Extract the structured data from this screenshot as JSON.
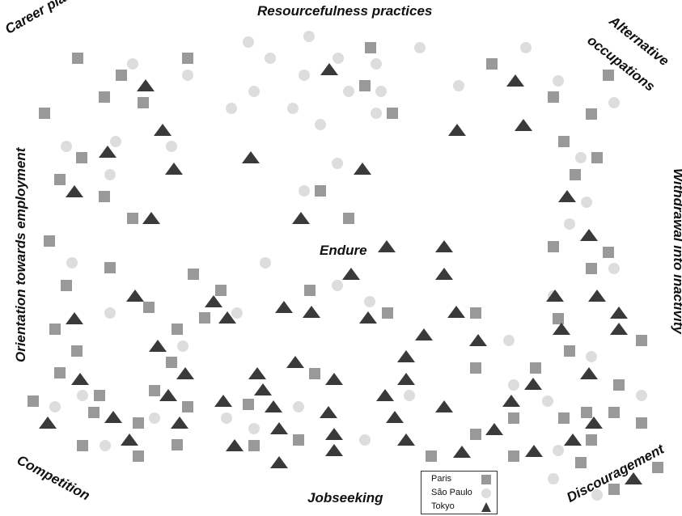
{
  "labels": {
    "top": "Resourcefulness practices",
    "top_left": "Career plan",
    "top_right_line1": "Alternative",
    "top_right_line2": "occupations",
    "left": "Orientation towards employment",
    "right": "Withdrawal into inactivity",
    "center": "Endure",
    "bottom": "Jobseeking",
    "bottom_left": "Competition",
    "bottom_right": "Discouragement"
  },
  "legend": [
    {
      "label": "Paris",
      "marker": "square"
    },
    {
      "label": "São Paulo",
      "marker": "circle"
    },
    {
      "label": "Tokyo",
      "marker": "triangle"
    }
  ],
  "colors": {
    "paris": "#999999",
    "sao_paulo": "#dddddd",
    "tokyo": "#3a3a3a"
  }
}
